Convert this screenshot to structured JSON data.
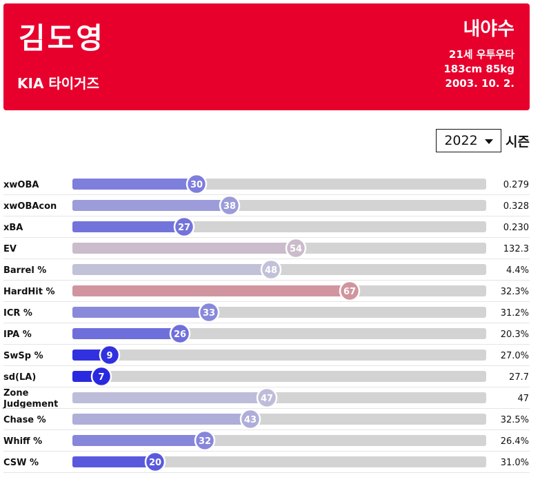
{
  "player": {
    "name": "김도영",
    "team": "KIA 타이거즈",
    "position": "내야수",
    "age_bats": "21세 우투우타",
    "body": "183cm 85kg",
    "birthdate": "2003. 10. 2."
  },
  "season": {
    "selected": "2022",
    "suffix": "시즌"
  },
  "colors": {
    "header_bg": "#e8002d",
    "track": "#d3d3d3",
    "low": "#2222e0",
    "mid": "#c8c8d8",
    "high": "#e0312e"
  },
  "chart_data": {
    "type": "bar",
    "orientation": "horizontal",
    "xlim": [
      0,
      100
    ],
    "series": [
      {
        "metrics": [
          "xwOBA",
          "xwOBAcon",
          "xBA",
          "EV",
          "Barrel %",
          "HardHit %",
          "ICR %",
          "IPA %",
          "SwSp %",
          "sd(LA)",
          "Zone Judgement",
          "Chase %",
          "Whiff %",
          "CSW %"
        ],
        "percentiles": [
          30,
          38,
          27,
          54,
          48,
          67,
          33,
          26,
          9,
          7,
          47,
          43,
          32,
          20
        ],
        "values": [
          "0.279",
          "0.328",
          "0.230",
          "132.3",
          "4.4%",
          "32.3%",
          "31.2%",
          "20.3%",
          "27.0%",
          "27.7",
          "47",
          "32.5%",
          "26.4%",
          "31.0%"
        ]
      }
    ]
  }
}
